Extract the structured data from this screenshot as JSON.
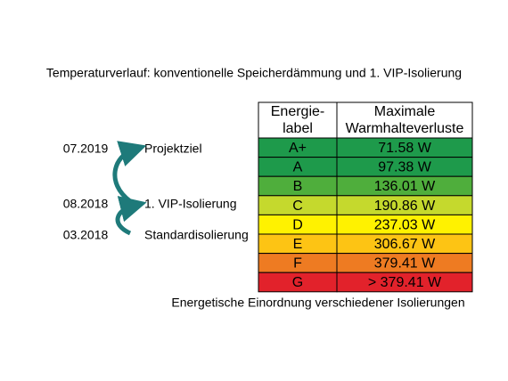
{
  "title": "Temperaturverlauf: konventionelle Speicherdämmung und 1. VIP-Isolierung",
  "timeline": [
    {
      "date": "07.2019",
      "label": "Projektziel"
    },
    {
      "date": "08.2018",
      "label": "1. VIP-Isolierung"
    },
    {
      "date": "03.2018",
      "label": "Standardisolierung"
    }
  ],
  "table": {
    "header": [
      [
        "Energie-",
        "label"
      ],
      [
        "Maximale",
        "Warmhalteverluste"
      ]
    ],
    "rows": [
      {
        "label": "A+",
        "value": "71.58 W",
        "color": "#1e9a4b"
      },
      {
        "label": "A",
        "value": "97.38 W",
        "color": "#1e9a4b"
      },
      {
        "label": "B",
        "value": "136.01 W",
        "color": "#4fae3c"
      },
      {
        "label": "C",
        "value": "190.86 W",
        "color": "#c5d92d"
      },
      {
        "label": "D",
        "value": "237.03 W",
        "color": "#fff200"
      },
      {
        "label": "E",
        "value": "306.67 W",
        "color": "#fdc414"
      },
      {
        "label": "F",
        "value": "379.41 W",
        "color": "#ee7b22"
      },
      {
        "label": "G",
        "value": "> 379.41 W",
        "color": "#e2222b"
      }
    ]
  },
  "caption": "Energetische Einordnung verschiedener Isolierungen"
}
